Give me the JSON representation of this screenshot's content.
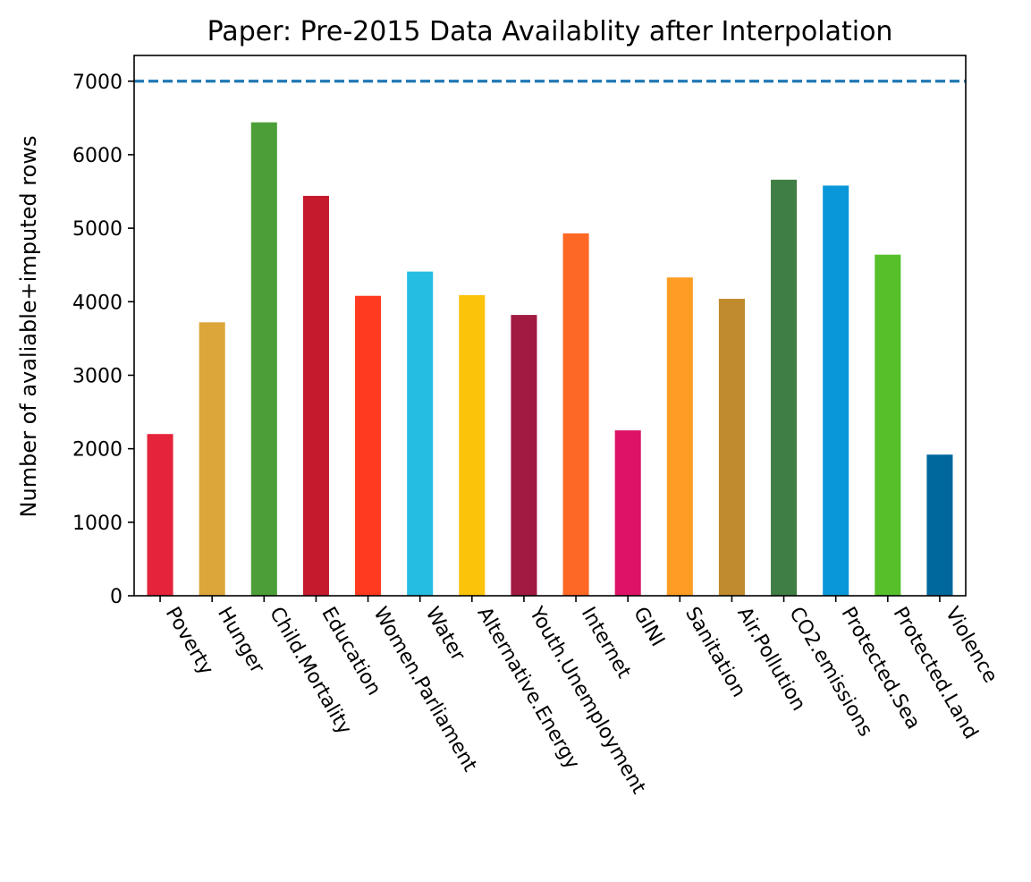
{
  "chart_data": {
    "type": "bar",
    "title": "Paper: Pre-2015 Data Availablity after Interpolation",
    "xlabel": "",
    "ylabel": "Number of avaliable+imputed rows",
    "ylim": [
      0,
      7350
    ],
    "yticks": [
      0,
      1000,
      2000,
      3000,
      4000,
      5000,
      6000,
      7000
    ],
    "grid": false,
    "legend": "none",
    "reference_line": {
      "value": 7000,
      "style": "dashed",
      "color": "#1f77b4"
    },
    "categories": [
      "Poverty",
      "Hunger",
      "Child.Mortality",
      "Education",
      "Women.Parliament",
      "Water",
      "Alternative.Energy",
      "Youth.Unemployment",
      "Internet",
      "GINI",
      "Sanitation",
      "Air.Pollution",
      "CO2.emissions",
      "Protected.Sea",
      "Protected.Land",
      "Violence"
    ],
    "values": [
      2200,
      3720,
      6440,
      5440,
      4080,
      4410,
      4090,
      3820,
      4930,
      2250,
      4330,
      4040,
      5660,
      5580,
      4640,
      1920
    ],
    "colors": [
      "#E5243B",
      "#DDA63A",
      "#4C9F38",
      "#C5192D",
      "#FF3A21",
      "#26BDE2",
      "#FCC30B",
      "#A21942",
      "#FD6925",
      "#DD1367",
      "#FD9D24",
      "#BF8B2E",
      "#3F7E44",
      "#0A97D9",
      "#56C02B",
      "#00689D"
    ]
  }
}
